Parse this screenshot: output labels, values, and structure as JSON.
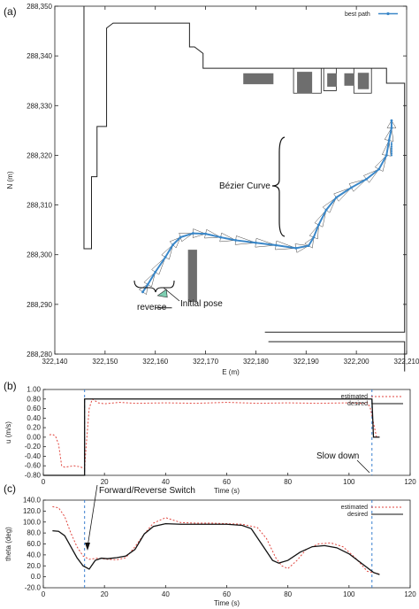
{
  "chart_data": [
    {
      "type": "line",
      "panel_label": "(a)",
      "xlabel": "E (m)",
      "ylabel": "N (m)",
      "xlim": [
        322140,
        322210
      ],
      "ylim": [
        288280,
        288350
      ],
      "x_ticks": [
        "322,140",
        "322,150",
        "322,160",
        "322,170",
        "322,180",
        "322,190",
        "322,200",
        "322,210"
      ],
      "y_ticks": [
        "288,280",
        "288,290",
        "288,300",
        "288,310",
        "288,320",
        "288,330",
        "288,340",
        "288,350"
      ],
      "legend": [
        "best path"
      ],
      "annotations": [
        "Bézier Curve",
        "reverse",
        "Initial pose"
      ],
      "series": [
        {
          "name": "best path",
          "x": [
            322157.5,
            322158.5,
            322160,
            322162,
            322163.5,
            322165,
            322167.5,
            322170,
            322173,
            322176,
            322180,
            322184,
            322188,
            322190.5,
            322191.5,
            322192.5,
            322194,
            322196,
            322199,
            322202,
            322204.5,
            322206,
            322206.5,
            322207,
            322207
          ],
          "y": [
            288292.5,
            288294,
            288296.5,
            288299.5,
            288302,
            288303.5,
            288304.3,
            288304.2,
            288303.5,
            288302.9,
            288302.4,
            288301.9,
            288301.3,
            288301.8,
            288303.5,
            288306,
            288309,
            288311.5,
            288313.5,
            288315.2,
            288317.2,
            288320,
            288323,
            288325.5,
            288327
          ]
        }
      ]
    },
    {
      "type": "line",
      "panel_label": "(b)",
      "xlabel": "Time (s)",
      "ylabel": "u (m/s)",
      "xlim": [
        0,
        120
      ],
      "ylim": [
        -0.8,
        1.0
      ],
      "x_ticks": [
        "0",
        "20",
        "40",
        "60",
        "80",
        "100",
        "120"
      ],
      "y_ticks": [
        "-0.80",
        "-0.60",
        "-0.40",
        "-0.20",
        "0.00",
        "0.20",
        "0.40",
        "0.60",
        "0.80",
        "1.00"
      ],
      "legend": [
        "estimated",
        "desired"
      ],
      "annotations": [
        "Slow down",
        "Forward/Reverse Switch"
      ],
      "series": [
        {
          "name": "estimated",
          "x": [
            2,
            3,
            4,
            5,
            6,
            7,
            8,
            10,
            12,
            13.5,
            14,
            15,
            16,
            17,
            18,
            20,
            25,
            30,
            40,
            50,
            60,
            70,
            80,
            90,
            100,
            105,
            106,
            107,
            108,
            109,
            110
          ],
          "y": [
            0.05,
            0.06,
            0.02,
            -0.15,
            -0.6,
            -0.63,
            -0.62,
            -0.6,
            -0.62,
            -0.66,
            -0.2,
            0.6,
            0.8,
            0.76,
            0.72,
            0.7,
            0.73,
            0.71,
            0.72,
            0.71,
            0.73,
            0.71,
            0.72,
            0.71,
            0.72,
            0.71,
            0.73,
            0.6,
            0.3,
            0.0,
            0.0
          ]
        },
        {
          "name": "desired",
          "x": [
            0,
            13.5,
            13.5,
            107.5,
            108,
            110
          ],
          "y": [
            -0.8,
            -0.8,
            0.8,
            0.8,
            0.0,
            0.0
          ]
        }
      ]
    },
    {
      "type": "line",
      "panel_label": "(c)",
      "xlabel": "Time (s)",
      "ylabel": "theta (deg)",
      "xlim": [
        0,
        120
      ],
      "ylim": [
        -20,
        140
      ],
      "x_ticks": [
        "0",
        "20",
        "40",
        "60",
        "80",
        "100",
        "120"
      ],
      "y_ticks": [
        "-20.0",
        "0.0",
        "20.0",
        "40.0",
        "60.0",
        "80.0",
        "100.0",
        "120.0",
        "140.0"
      ],
      "legend": [
        "estimated",
        "desired"
      ],
      "annotations": [],
      "series": [
        {
          "name": "estimated",
          "x": [
            3,
            5,
            7,
            9,
            11,
            13,
            15,
            18,
            21,
            24,
            27,
            30,
            33,
            36,
            40,
            45,
            50,
            55,
            60,
            65,
            70,
            73,
            76,
            78,
            80,
            83,
            86,
            90,
            94,
            98,
            102,
            106,
            110
          ],
          "y": [
            128,
            126,
            110,
            80,
            55,
            38,
            32,
            34,
            32,
            31,
            35,
            55,
            78,
            98,
            108,
            99,
            98,
            98,
            97,
            96,
            90,
            70,
            35,
            20,
            15,
            30,
            50,
            60,
            62,
            55,
            35,
            10,
            5
          ]
        },
        {
          "name": "desired",
          "x": [
            3,
            5,
            7,
            9,
            11,
            13,
            15,
            17,
            19,
            21,
            24,
            27,
            30,
            33,
            36,
            40,
            45,
            50,
            55,
            60,
            65,
            68,
            72,
            75,
            77,
            80,
            84,
            88,
            92,
            96,
            100,
            104,
            108,
            110
          ],
          "y": [
            84,
            83,
            75,
            55,
            35,
            20,
            14,
            30,
            34,
            33,
            35,
            38,
            50,
            78,
            92,
            97,
            96,
            96,
            96,
            96,
            94,
            88,
            55,
            30,
            25,
            30,
            45,
            55,
            57,
            53,
            42,
            25,
            8,
            4
          ]
        }
      ]
    }
  ],
  "colors": {
    "best_path": "#3a87c8",
    "estimated": "#e0463f",
    "desired": "#111111",
    "switch_line": "#3a7fd0",
    "obstacle": "#6e6e6e",
    "pose_fill": "#7ecfb2"
  }
}
